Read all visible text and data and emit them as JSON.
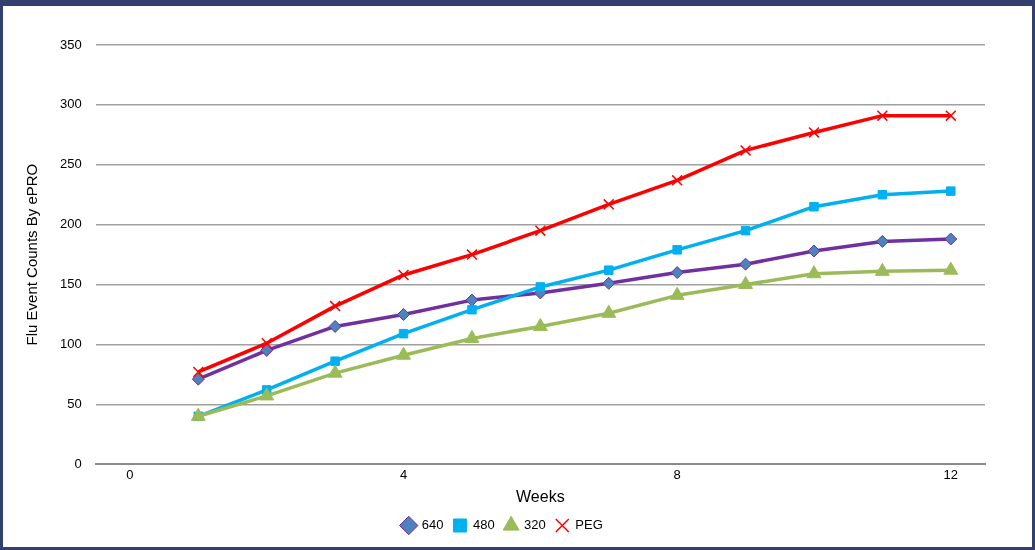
{
  "chart_data": {
    "type": "line",
    "xlabel": "Weeks",
    "ylabel": "Flu Event Counts By ePRO",
    "x": [
      1,
      2,
      3,
      4,
      5,
      6,
      7,
      8,
      9,
      10,
      11,
      12
    ],
    "series": [
      {
        "name": "640",
        "color": "#7030a0",
        "marker": "diamond",
        "values": [
          71,
          95,
          115,
          125,
          137,
          143,
          151,
          160,
          167,
          178,
          186,
          188
        ]
      },
      {
        "name": "480",
        "color": "#00b0f0",
        "marker": "square",
        "values": [
          40,
          62,
          86,
          109,
          129,
          148,
          162,
          179,
          195,
          215,
          225,
          228
        ]
      },
      {
        "name": "320",
        "color": "#9bbb59",
        "marker": "triangle",
        "values": [
          40,
          57,
          76,
          91,
          105,
          115,
          126,
          141,
          150,
          159,
          161,
          162
        ]
      },
      {
        "name": "PEG",
        "color": "#ff0000",
        "marker": "cross",
        "values": [
          77,
          101,
          132,
          158,
          175,
          195,
          217,
          237,
          262,
          277,
          291,
          291
        ]
      }
    ],
    "xlim": [
      -0.5,
      12.5
    ],
    "xticks": [
      0,
      4,
      8,
      12
    ],
    "ylim": [
      0,
      350
    ],
    "yticks": [
      0,
      50,
      100,
      150,
      200,
      250,
      300,
      350
    ],
    "grid": "y",
    "legend": "bottom",
    "line_style": "solid"
  }
}
